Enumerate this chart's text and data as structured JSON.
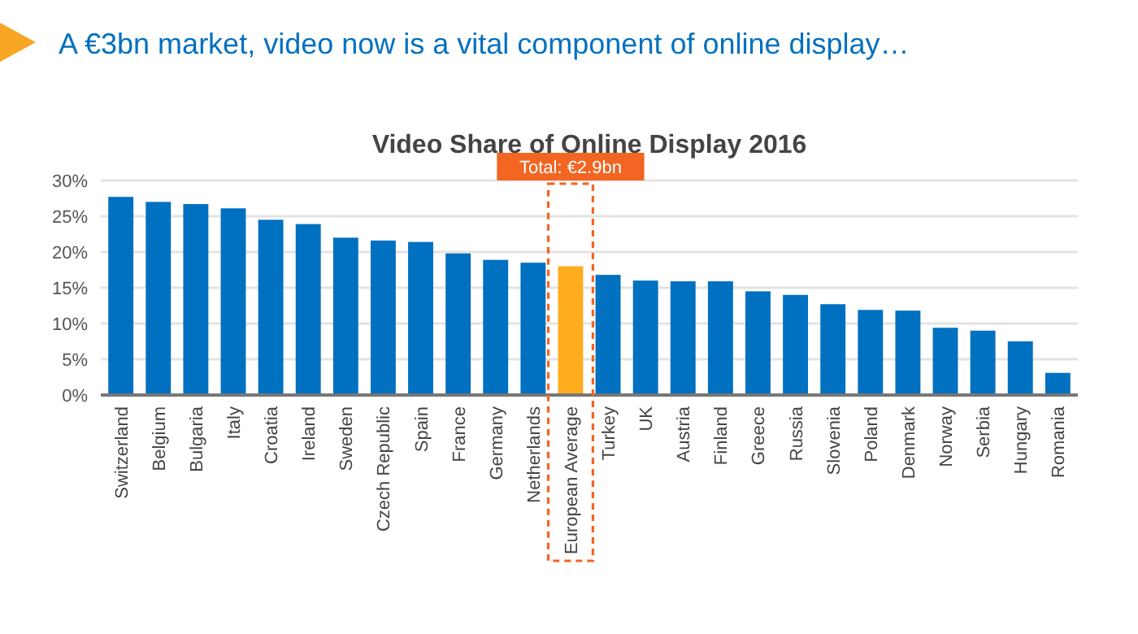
{
  "chart_data": {
    "type": "bar",
    "title": "Video Share of Online Display 2016",
    "subtitle": "A €3bn market, video now is a vital component of online display…",
    "categories": [
      "Switzerland",
      "Belgium",
      "Bulgaria",
      "Italy",
      "Croatia",
      "Ireland",
      "Sweden",
      "Czech Republic",
      "Spain",
      "France",
      "Germany",
      "Netherlands",
      "European Average",
      "Turkey",
      "UK",
      "Austria",
      "Finland",
      "Greece",
      "Russia",
      "Slovenia",
      "Poland",
      "Denmark",
      "Norway",
      "Serbia",
      "Hungary",
      "Romania"
    ],
    "values": [
      27.7,
      27.0,
      26.7,
      26.1,
      24.5,
      23.9,
      22.0,
      21.6,
      21.4,
      19.8,
      18.9,
      18.5,
      18.0,
      16.8,
      16.0,
      15.9,
      15.9,
      14.5,
      14.0,
      12.7,
      11.9,
      11.8,
      9.4,
      9.0,
      7.5,
      3.1
    ],
    "colors": [
      "#0070c0",
      "#0070c0",
      "#0070c0",
      "#0070c0",
      "#0070c0",
      "#0070c0",
      "#0070c0",
      "#0070c0",
      "#0070c0",
      "#0070c0",
      "#0070c0",
      "#0070c0",
      "#ffad1f",
      "#0070c0",
      "#0070c0",
      "#0070c0",
      "#0070c0",
      "#0070c0",
      "#0070c0",
      "#0070c0",
      "#0070c0",
      "#0070c0",
      "#0070c0",
      "#0070c0",
      "#0070c0",
      "#0070c0"
    ],
    "ylim": [
      0,
      30
    ],
    "yticks": [
      {
        "value": 0,
        "label": "0%"
      },
      {
        "value": 5,
        "label": "5%"
      },
      {
        "value": 10,
        "label": "10%"
      },
      {
        "value": 15,
        "label": "15%"
      },
      {
        "value": 20,
        "label": "20%"
      },
      {
        "value": 25,
        "label": "25%"
      },
      {
        "value": 30,
        "label": "30%"
      }
    ],
    "grid": "y",
    "annotations": [
      "Total: €2.9bn"
    ]
  }
}
